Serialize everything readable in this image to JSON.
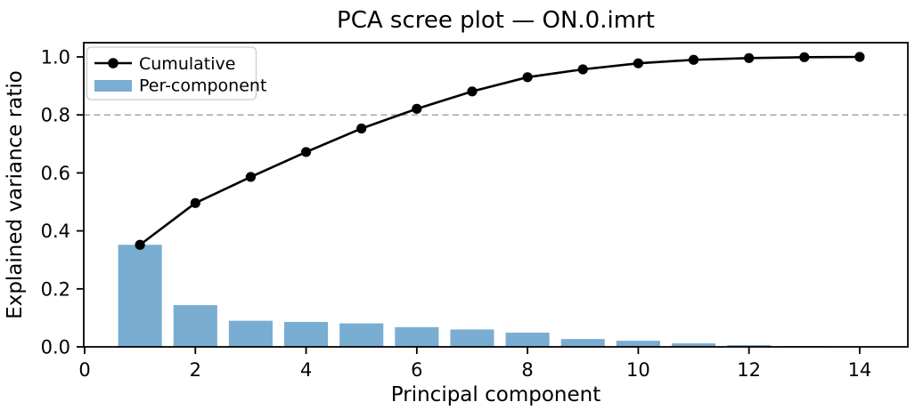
{
  "chart_data": {
    "type": "bar",
    "title": "PCA scree plot — ON.0.imrt",
    "xlabel": "Principal component",
    "ylabel": "Explained variance ratio",
    "x": [
      1,
      2,
      3,
      4,
      5,
      6,
      7,
      8,
      9,
      10,
      11,
      12,
      13,
      14
    ],
    "series": [
      {
        "name": "Cumulative",
        "type": "line",
        "color": "#000000",
        "marker": "circle",
        "values": [
          0.352,
          0.496,
          0.586,
          0.672,
          0.753,
          0.821,
          0.881,
          0.93,
          0.957,
          0.978,
          0.99,
          0.996,
          0.999,
          1.0
        ]
      },
      {
        "name": "Per-component",
        "type": "bar",
        "color": "#79add2",
        "values": [
          0.352,
          0.144,
          0.09,
          0.086,
          0.081,
          0.068,
          0.06,
          0.049,
          0.027,
          0.021,
          0.012,
          0.006,
          0.003,
          0.001
        ]
      }
    ],
    "threshold_line": {
      "y": 0.8,
      "style": "dashed",
      "color": "#a6a6a6"
    },
    "xlim": [
      0,
      14.87
    ],
    "ylim": [
      0,
      1.045
    ],
    "xticks": [
      0,
      2,
      4,
      6,
      8,
      10,
      12,
      14
    ],
    "xtick_labels": [
      "0",
      "2",
      "4",
      "6",
      "8",
      "10",
      "12",
      "14"
    ],
    "yticks": [
      0.0,
      0.2,
      0.4,
      0.6,
      0.8,
      1.0
    ],
    "ytick_labels": [
      "0.0",
      "0.2",
      "0.4",
      "0.6",
      "0.8",
      "1.0"
    ],
    "grid": false,
    "legend_position": "upper left",
    "legend": {
      "entries": [
        {
          "label": "Cumulative",
          "marker": "line-dot"
        },
        {
          "label": "Per-component",
          "marker": "patch"
        }
      ]
    }
  },
  "colors": {
    "bar": "#79add2",
    "line": "#000000",
    "threshold": "#a6a6a6",
    "spine": "#000000",
    "legend_border": "#cccccc",
    "background": "#ffffff"
  }
}
